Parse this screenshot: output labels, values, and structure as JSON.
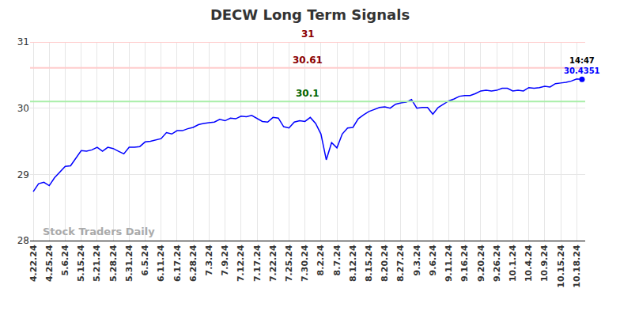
{
  "chart_data": {
    "type": "line",
    "title": "DECW Long Term Signals",
    "categories": [
      "4.22.24",
      null,
      null,
      "4.25.24",
      null,
      null,
      "5.6.24",
      null,
      null,
      "5.15.24",
      null,
      null,
      "5.21.24",
      null,
      null,
      "5.28.24",
      null,
      null,
      "5.31.24",
      null,
      null,
      "6.5.24",
      null,
      null,
      "6.11.24",
      null,
      null,
      "6.17.24",
      null,
      null,
      "6.28.24",
      null,
      null,
      "7.3.24",
      null,
      null,
      "7.9.24",
      null,
      null,
      "7.12.24",
      null,
      null,
      "7.17.24",
      null,
      null,
      "7.22.24",
      null,
      null,
      "7.25.24",
      null,
      null,
      "7.30.24",
      null,
      null,
      "8.2.24",
      null,
      null,
      "8.7.24",
      null,
      null,
      "8.12.24",
      null,
      null,
      "8.15.24",
      null,
      null,
      "8.20.24",
      null,
      null,
      "8.27.24",
      null,
      null,
      "9.3.24",
      null,
      null,
      "9.6.24",
      null,
      null,
      "9.11.24",
      null,
      null,
      "9.16.24",
      null,
      null,
      "9.20.24",
      null,
      null,
      "9.26.24",
      null,
      null,
      "10.1.24",
      null,
      null,
      "10.4.24",
      null,
      null,
      "10.9.24",
      null,
      null,
      "10.15.24",
      null,
      null,
      "10.18.24",
      null
    ],
    "values": [
      28.74,
      28.86,
      28.88,
      28.83,
      28.95,
      29.04,
      29.12,
      29.13,
      29.24,
      29.36,
      29.35,
      29.37,
      29.41,
      29.35,
      29.41,
      29.39,
      29.35,
      29.31,
      29.41,
      29.41,
      29.42,
      29.49,
      29.5,
      29.52,
      29.54,
      29.63,
      29.61,
      29.66,
      29.66,
      29.69,
      29.71,
      29.75,
      29.77,
      29.78,
      29.79,
      29.83,
      29.81,
      29.85,
      29.84,
      29.88,
      29.87,
      29.89,
      29.85,
      29.8,
      29.79,
      29.86,
      29.85,
      29.72,
      29.7,
      29.79,
      29.81,
      29.8,
      29.86,
      29.77,
      29.61,
      29.22,
      29.48,
      29.4,
      29.61,
      29.7,
      29.71,
      29.84,
      29.9,
      29.95,
      29.98,
      30.01,
      30.02,
      30.0,
      30.06,
      30.08,
      30.09,
      30.13,
      30.0,
      30.01,
      30.01,
      29.91,
      30.01,
      30.06,
      30.11,
      30.14,
      30.18,
      30.19,
      30.19,
      30.22,
      30.26,
      30.27,
      30.26,
      30.27,
      30.3,
      30.3,
      30.26,
      30.27,
      30.26,
      30.31,
      30.3,
      30.31,
      30.33,
      30.32,
      30.37,
      30.38,
      30.39,
      30.41,
      30.44,
      30.4351
    ],
    "color": "#0000ff",
    "ylim": [
      28,
      31
    ],
    "yticks": [
      28,
      29,
      30,
      31
    ],
    "grid": true,
    "lines": [
      {
        "value": 31,
        "color": "#8b0000"
      },
      {
        "value": 30.61,
        "color": "#8b0000"
      },
      {
        "value": 30.1,
        "color": "#006400"
      }
    ],
    "annotations": [
      {
        "text": "14:47"
      },
      {
        "text": "Stock Traders Daily"
      }
    ]
  }
}
